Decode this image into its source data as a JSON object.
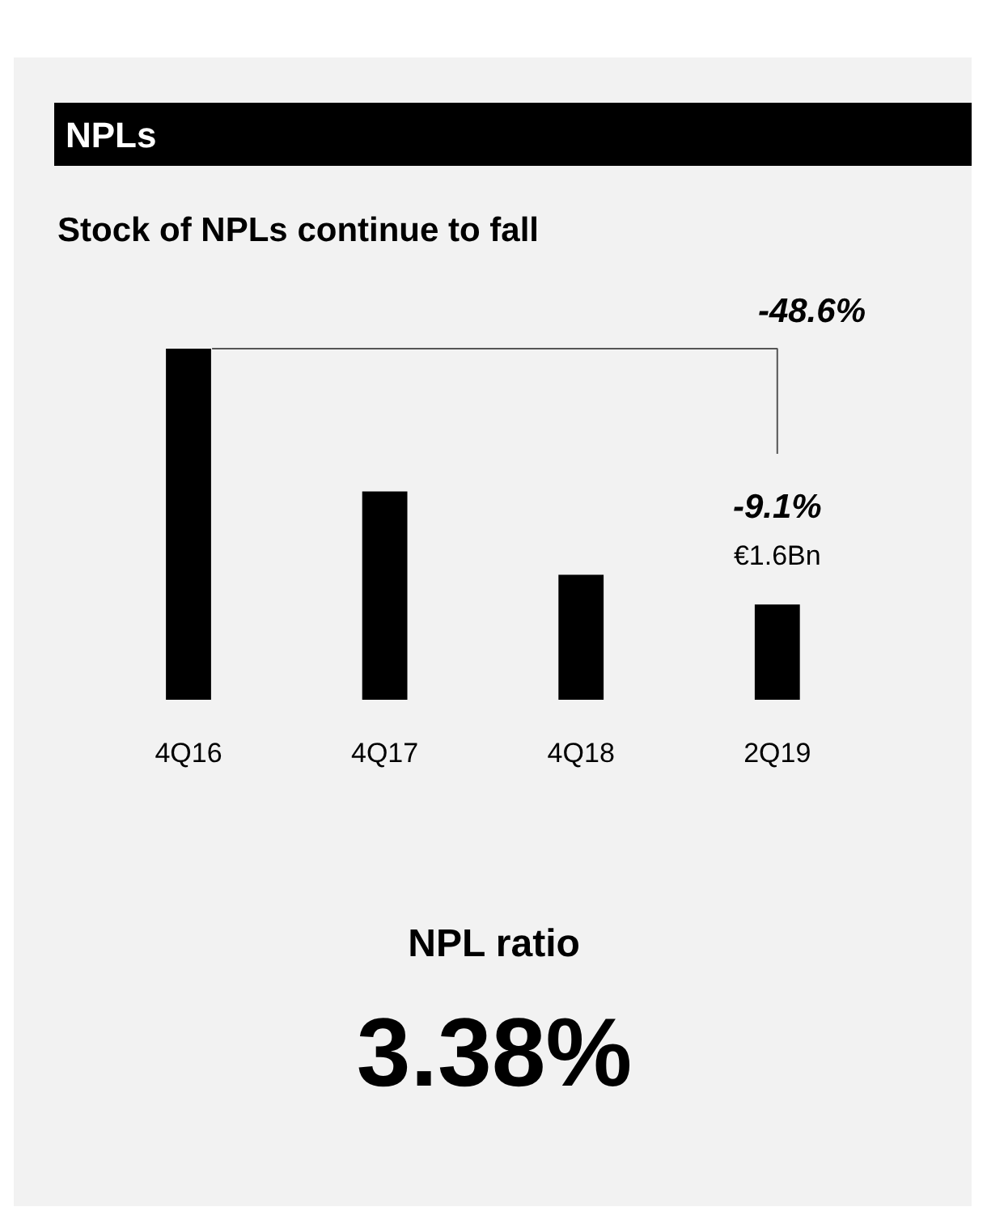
{
  "chart_data": {
    "type": "bar",
    "title": "NPLs",
    "subtitle": "Stock of NPLs continue to fall",
    "categories": [
      "4Q16",
      "4Q17",
      "4Q18",
      "2Q19"
    ],
    "values": [
      5.9,
      3.5,
      2.1,
      1.6
    ],
    "color": "#000000",
    "value_labels": [
      null,
      null,
      null,
      "€1.6Bn"
    ],
    "annotations": [
      "-48.6%",
      "-9.1%",
      "NPL ratio",
      "3.38%"
    ]
  }
}
